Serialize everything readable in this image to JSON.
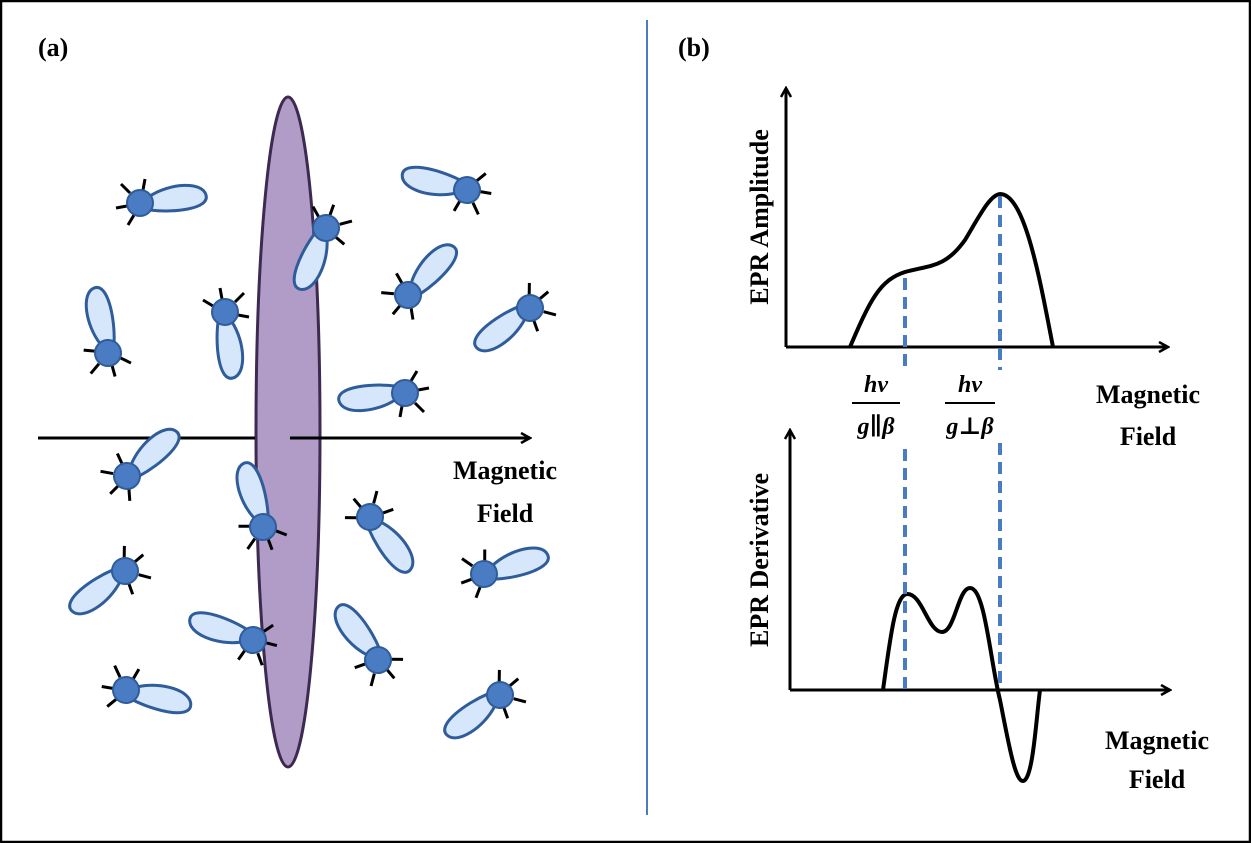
{
  "panel_a": {
    "label": "(a)",
    "field_label": [
      "Magnetic",
      "Field"
    ]
  },
  "panel_b": {
    "label": "(b)",
    "amplitude_axis_label": "EPR Amplitude",
    "amplitude_field_label": [
      "Magnetic",
      "Field"
    ],
    "derivative_axis_label": "EPR Derivative",
    "derivative_field_label": [
      "Magnetic",
      "Field"
    ],
    "fractions": [
      {
        "numerator": "hν",
        "denominator": "g∥β"
      },
      {
        "numerator": "hν",
        "denominator": "g⊥β"
      }
    ]
  }
}
